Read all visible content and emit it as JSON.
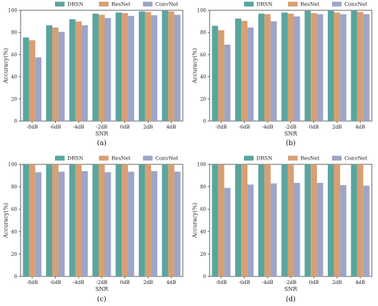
{
  "chart_data": [
    {
      "type": "bar",
      "caption": "(a)",
      "categories": [
        "-8dB",
        "-6dB",
        "-4dB",
        "-2dB",
        "0dB",
        "2dB",
        "4dB"
      ],
      "series": [
        {
          "name": "DRSN",
          "values": [
            75.5,
            86.5,
            92.0,
            97.0,
            98.0,
            99.0,
            99.5
          ]
        },
        {
          "name": "ResNet",
          "values": [
            73.0,
            84.5,
            90.0,
            96.0,
            97.5,
            98.5,
            99.0
          ]
        },
        {
          "name": "ConvNet",
          "values": [
            57.5,
            80.5,
            86.5,
            93.0,
            95.0,
            95.5,
            96.0
          ]
        }
      ],
      "xlabel": "SNR",
      "ylabel": "Accuracy(%)",
      "ylim": [
        0,
        100
      ],
      "yticks": [
        0,
        20,
        40,
        60,
        80,
        100
      ],
      "legend": "top"
    },
    {
      "type": "bar",
      "caption": "(b)",
      "categories": [
        "-8dB",
        "-6dB",
        "-4dB",
        "-2dB",
        "0dB",
        "2dB",
        "4dB"
      ],
      "series": [
        {
          "name": "DRSN",
          "values": [
            86.0,
            92.5,
            97.0,
            98.0,
            99.5,
            99.5,
            99.5
          ]
        },
        {
          "name": "ResNet",
          "values": [
            82.0,
            90.5,
            96.5,
            97.0,
            97.5,
            98.0,
            98.5
          ]
        },
        {
          "name": "ConvNet",
          "values": [
            69.0,
            84.5,
            90.0,
            94.5,
            96.5,
            96.5,
            96.5
          ]
        }
      ],
      "xlabel": "SNR",
      "ylabel": "Accuracy(%)",
      "ylim": [
        0,
        100
      ],
      "yticks": [
        0,
        20,
        40,
        60,
        80,
        100
      ],
      "legend": "top"
    },
    {
      "type": "bar",
      "caption": "(c)",
      "categories": [
        "-8dB",
        "-6dB",
        "-4dB",
        "-2dB",
        "0dB",
        "2dB",
        "4dB"
      ],
      "series": [
        {
          "name": "DRSN",
          "values": [
            100,
            100,
            100,
            100,
            100,
            100,
            100
          ]
        },
        {
          "name": "ResNet",
          "values": [
            100,
            100,
            100,
            100,
            100,
            100,
            100
          ]
        },
        {
          "name": "ConvNet",
          "values": [
            93.0,
            93.5,
            94.0,
            93.0,
            93.5,
            94.0,
            93.5
          ]
        }
      ],
      "xlabel": "SNR",
      "ylabel": "Accuracy(%)",
      "ylim": [
        0,
        100
      ],
      "yticks": [
        0,
        20,
        40,
        60,
        80,
        100
      ],
      "legend": "top"
    },
    {
      "type": "bar",
      "caption": "(d)",
      "categories": [
        "-8dB",
        "-6dB",
        "-4dB",
        "-2dB",
        "0dB",
        "2dB",
        "4dB"
      ],
      "series": [
        {
          "name": "DRSN",
          "values": [
            100,
            100,
            100,
            100,
            100,
            100,
            100
          ]
        },
        {
          "name": "ResNet",
          "values": [
            99.5,
            99.5,
            100,
            100,
            100,
            100,
            100
          ]
        },
        {
          "name": "ConvNet",
          "values": [
            79.0,
            82.0,
            83.0,
            83.5,
            83.5,
            81.5,
            81.0
          ]
        }
      ],
      "xlabel": "SNR",
      "ylabel": "Accuracy(%)",
      "ylim": [
        0,
        100
      ],
      "yticks": [
        0,
        20,
        40,
        60,
        80,
        100
      ],
      "legend": "top"
    }
  ],
  "colors": {
    "DRSN": "#5aa59e",
    "ResNet": "#d6a072",
    "ConvNet": "#9ea5c8"
  }
}
